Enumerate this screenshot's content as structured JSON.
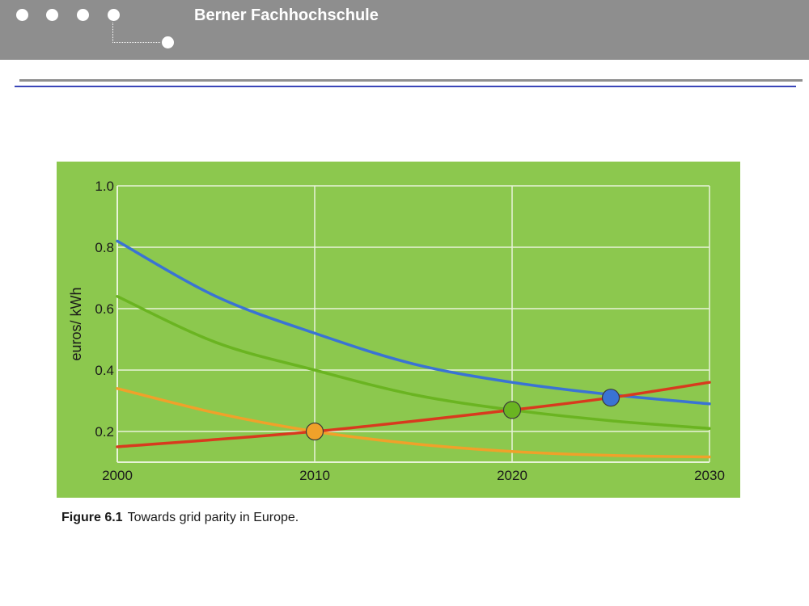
{
  "header": {
    "title": "Berner Fachhochschule",
    "dots": [
      "dot-1",
      "dot-2",
      "dot-3",
      "dot-4",
      "dot-linked"
    ]
  },
  "colors": {
    "header_bg": "#8e8e8e",
    "rule_blue": "#3a46b8",
    "plot_bg": "#8cc84e",
    "grid": "#e8f3d8",
    "blue_line": "#3a73d4",
    "green_line": "#6ab421",
    "orange_line": "#f0a12a",
    "red_line": "#d83a1e"
  },
  "caption": {
    "label": "Figure 6.1",
    "text": "Towards grid parity in Europe."
  },
  "chart_data": {
    "type": "line",
    "title": "",
    "xlabel": "",
    "ylabel": "euros/ kWh",
    "xlim": [
      2000,
      2030
    ],
    "ylim": [
      0.1,
      1.0
    ],
    "x_ticks": [
      "2000",
      "2010",
      "2020",
      "2030"
    ],
    "y_ticks": [
      "0.2",
      "0.4",
      "0.6",
      "0.8",
      "1.0"
    ],
    "grid": true,
    "legend": "none",
    "series": [
      {
        "color": "#3a73d4",
        "x": [
          2000,
          2005,
          2010,
          2015,
          2020,
          2025,
          2030
        ],
        "y": [
          0.82,
          0.64,
          0.52,
          0.42,
          0.36,
          0.32,
          0.29
        ]
      },
      {
        "color": "#6ab421",
        "x": [
          2000,
          2005,
          2010,
          2015,
          2020,
          2025,
          2030
        ],
        "y": [
          0.64,
          0.49,
          0.4,
          0.32,
          0.27,
          0.235,
          0.21
        ]
      },
      {
        "color": "#f0a12a",
        "x": [
          2000,
          2005,
          2010,
          2015,
          2020,
          2025,
          2030
        ],
        "y": [
          0.34,
          0.26,
          0.2,
          0.16,
          0.135,
          0.122,
          0.117
        ]
      },
      {
        "color": "#d83a1e",
        "x": [
          2000,
          2010,
          2020,
          2025,
          2030
        ],
        "y": [
          0.15,
          0.2,
          0.27,
          0.31,
          0.36
        ]
      }
    ],
    "markers": [
      {
        "x": 2010,
        "y": 0.2,
        "color": "#f0a12a"
      },
      {
        "x": 2020,
        "y": 0.27,
        "color": "#6ab421"
      },
      {
        "x": 2025,
        "y": 0.31,
        "color": "#3a73d4"
      }
    ]
  }
}
